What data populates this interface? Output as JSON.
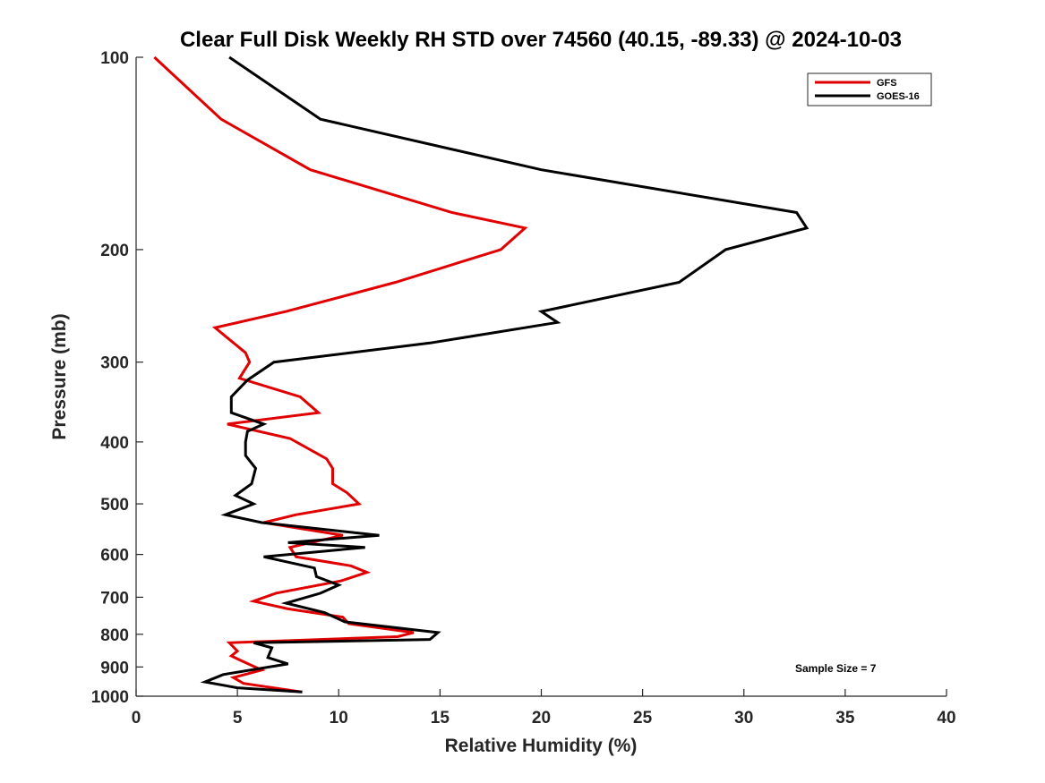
{
  "chart_data": {
    "type": "line",
    "title": "Clear Full Disk Weekly RH STD over 74560 (40.15, -89.33) @ 2024-10-03",
    "xlabel": "Relative Humidity (%)",
    "ylabel": "Pressure (mb)",
    "xlim": [
      0,
      40
    ],
    "ylim": [
      100,
      1000
    ],
    "y_scale": "log",
    "y_reversed": true,
    "grid": false,
    "legend_position": "top-right",
    "x_ticks": [
      "0",
      "5",
      "10",
      "15",
      "20",
      "25",
      "30",
      "35",
      "40"
    ],
    "y_ticks": [
      "100",
      "200",
      "300",
      "400",
      "500",
      "600",
      "700",
      "800",
      "900",
      "1000"
    ],
    "annotation": "Sample Size = 7",
    "series": [
      {
        "name": "GFS",
        "color": "#e00000",
        "points": [
          [
            0.9,
            100
          ],
          [
            4.2,
            125
          ],
          [
            8.6,
            150
          ],
          [
            15.6,
            175
          ],
          [
            19.2,
            185
          ],
          [
            18.0,
            200
          ],
          [
            12.8,
            225
          ],
          [
            7.4,
            250
          ],
          [
            3.9,
            265
          ],
          [
            5.4,
            290
          ],
          [
            5.6,
            300
          ],
          [
            5.1,
            318
          ],
          [
            8.1,
            340
          ],
          [
            9.0,
            360
          ],
          [
            4.5,
            375
          ],
          [
            7.6,
            395
          ],
          [
            9.4,
            425
          ],
          [
            9.7,
            440
          ],
          [
            9.7,
            465
          ],
          [
            10.4,
            480
          ],
          [
            11.0,
            500
          ],
          [
            7.9,
            520
          ],
          [
            6.3,
            535
          ],
          [
            10.2,
            560
          ],
          [
            7.6,
            585
          ],
          [
            7.9,
            605
          ],
          [
            10.6,
            625
          ],
          [
            11.4,
            640
          ],
          [
            10.1,
            660
          ],
          [
            6.9,
            690
          ],
          [
            5.8,
            710
          ],
          [
            7.5,
            730
          ],
          [
            10.2,
            752
          ],
          [
            10.5,
            770
          ],
          [
            13.7,
            795
          ],
          [
            12.9,
            807
          ],
          [
            4.6,
            825
          ],
          [
            5.0,
            850
          ],
          [
            4.7,
            865
          ],
          [
            5.2,
            880
          ],
          [
            6.2,
            910
          ],
          [
            4.8,
            935
          ],
          [
            5.3,
            955
          ],
          [
            8.2,
            985
          ]
        ]
      },
      {
        "name": "GOES-16",
        "color": "#000000",
        "points": [
          [
            4.6,
            100
          ],
          [
            9.1,
            125
          ],
          [
            20.0,
            150
          ],
          [
            32.6,
            175
          ],
          [
            33.1,
            185
          ],
          [
            29.1,
            200
          ],
          [
            26.8,
            225
          ],
          [
            20.0,
            250
          ],
          [
            20.8,
            260
          ],
          [
            14.5,
            280
          ],
          [
            6.8,
            300
          ],
          [
            5.5,
            320
          ],
          [
            4.7,
            340
          ],
          [
            4.7,
            360
          ],
          [
            6.3,
            375
          ],
          [
            5.5,
            385
          ],
          [
            5.4,
            400
          ],
          [
            5.4,
            420
          ],
          [
            5.9,
            440
          ],
          [
            5.7,
            465
          ],
          [
            4.9,
            485
          ],
          [
            5.8,
            500
          ],
          [
            4.4,
            520
          ],
          [
            6.2,
            535
          ],
          [
            12.0,
            560
          ],
          [
            7.5,
            575
          ],
          [
            11.3,
            585
          ],
          [
            6.3,
            605
          ],
          [
            8.8,
            630
          ],
          [
            8.9,
            650
          ],
          [
            10.0,
            670
          ],
          [
            9.1,
            690
          ],
          [
            7.4,
            715
          ],
          [
            9.3,
            740
          ],
          [
            10.3,
            765
          ],
          [
            14.9,
            795
          ],
          [
            14.5,
            815
          ],
          [
            5.8,
            825
          ],
          [
            6.7,
            840
          ],
          [
            6.5,
            870
          ],
          [
            7.5,
            890
          ],
          [
            4.3,
            925
          ],
          [
            3.4,
            950
          ],
          [
            5.0,
            970
          ],
          [
            8.2,
            985
          ]
        ]
      }
    ]
  }
}
